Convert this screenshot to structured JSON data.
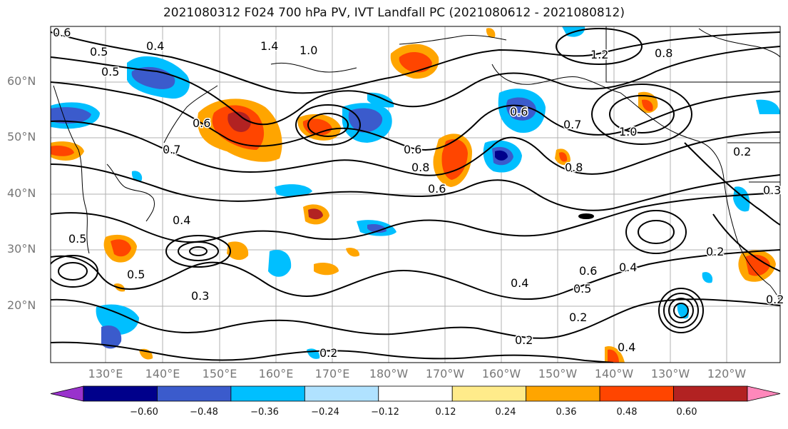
{
  "title": "2021080312 F024 700 hPa PV, IVT Landfall PC (2021080612 - 2021080812)",
  "map": {
    "lat_labels": [
      "60°N",
      "50°N",
      "40°N",
      "30°N",
      "20°N"
    ],
    "lon_labels": [
      "130°E",
      "140°E",
      "150°E",
      "160°E",
      "170°E",
      "180°W",
      "170°W",
      "160°W",
      "150°W",
      "140°W",
      "130°W",
      "120°W"
    ],
    "contour_labels": [
      "0.6",
      "0.5",
      "0.5",
      "0.4",
      "1.4",
      "1.0",
      "1.2",
      "0.8",
      "0.6",
      "0.7",
      "0.6",
      "0.6",
      "0.8",
      "0.6",
      "0.7",
      "0.8",
      "1.0",
      "0.5",
      "0.4",
      "0.5",
      "0.3",
      "0.4",
      "0.2",
      "0.6",
      "0.5",
      "0.4",
      "0.2",
      "0.4",
      "0.2",
      "0.2",
      "0.2",
      "0.3",
      "0.2"
    ],
    "contour_color": "#000000",
    "grid_color": "#b0b0b0"
  },
  "colorbar": {
    "ticks": [
      "−0.60",
      "−0.48",
      "−0.36",
      "−0.24",
      "−0.12",
      "0.12",
      "0.24",
      "0.36",
      "0.48",
      "0.60"
    ],
    "colors": [
      "#9932cc",
      "#00008b",
      "#3b5bcc",
      "#00bfff",
      "#b0e2ff",
      "#ffffff",
      "#ffeb8a",
      "#ffa500",
      "#ff4500",
      "#b22222",
      "#ff88bb"
    ]
  }
}
